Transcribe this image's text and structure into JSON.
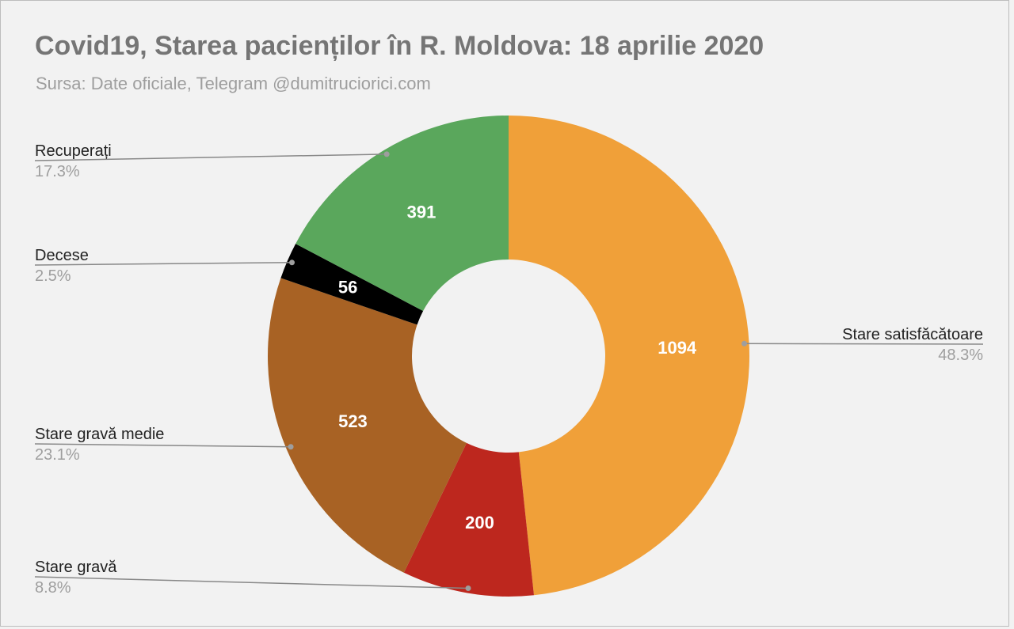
{
  "chart_data": {
    "type": "pie",
    "donut": true,
    "title": "Covid19, Starea pacienților în R. Moldova: 18 aprilie 2020",
    "subtitle": "Sursa: Date oficiale, Telegram @dumitruciorici.com",
    "slices": [
      {
        "label": "Stare satisfăcătoare",
        "value": 1094,
        "percent": "48.3%",
        "color": "#f0a039",
        "side": "right"
      },
      {
        "label": "Stare gravă",
        "value": 200,
        "percent": "8.8%",
        "color": "#bd271e",
        "side": "left"
      },
      {
        "label": "Stare gravă medie",
        "value": 523,
        "percent": "23.1%",
        "color": "#a86224",
        "side": "left"
      },
      {
        "label": "Decese",
        "value": 56,
        "percent": "2.5%",
        "color": "#000000",
        "side": "left"
      },
      {
        "label": "Recuperați",
        "value": 391,
        "percent": "17.3%",
        "color": "#5aa75c",
        "side": "left"
      }
    ],
    "legend": "outside-labels",
    "grid": false
  }
}
